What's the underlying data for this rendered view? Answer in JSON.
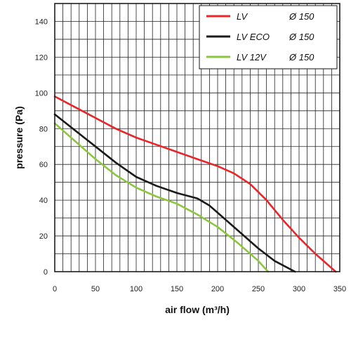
{
  "chart_data": {
    "type": "line",
    "xlabel": "air flow (m³/h)",
    "ylabel": "pressure (Pa)",
    "xlim": [
      0,
      350
    ],
    "ylim": [
      0,
      150
    ],
    "xticks": [
      0,
      50,
      100,
      150,
      200,
      250,
      300,
      350
    ],
    "yticks": [
      0,
      20,
      40,
      60,
      80,
      100,
      120,
      140
    ],
    "grid": true,
    "legend_position": "top-right",
    "series": [
      {
        "name": "LV",
        "spec": "Ø 150",
        "color": "#e8262a",
        "points": [
          [
            0,
            98
          ],
          [
            25,
            92
          ],
          [
            50,
            86
          ],
          [
            75,
            80
          ],
          [
            100,
            75
          ],
          [
            125,
            71
          ],
          [
            150,
            67
          ],
          [
            175,
            63
          ],
          [
            200,
            59
          ],
          [
            220,
            55
          ],
          [
            240,
            49
          ],
          [
            260,
            40
          ],
          [
            280,
            29
          ],
          [
            300,
            19
          ],
          [
            320,
            10
          ],
          [
            345,
            0
          ]
        ]
      },
      {
        "name": "LV ECO",
        "spec": "Ø 150",
        "color": "#1a1a1a",
        "points": [
          [
            0,
            88
          ],
          [
            25,
            79
          ],
          [
            50,
            70
          ],
          [
            75,
            61
          ],
          [
            100,
            53
          ],
          [
            125,
            48
          ],
          [
            150,
            44
          ],
          [
            175,
            41
          ],
          [
            190,
            37
          ],
          [
            210,
            29
          ],
          [
            230,
            21
          ],
          [
            250,
            13
          ],
          [
            270,
            6
          ],
          [
            295,
            0
          ]
        ]
      },
      {
        "name": "LV 12V",
        "spec": "Ø 150",
        "color": "#8cc63f",
        "points": [
          [
            0,
            83
          ],
          [
            25,
            73
          ],
          [
            50,
            63
          ],
          [
            75,
            54
          ],
          [
            100,
            47
          ],
          [
            125,
            42
          ],
          [
            150,
            38
          ],
          [
            175,
            32
          ],
          [
            200,
            25
          ],
          [
            225,
            16
          ],
          [
            250,
            6
          ],
          [
            262,
            0
          ]
        ]
      }
    ]
  }
}
